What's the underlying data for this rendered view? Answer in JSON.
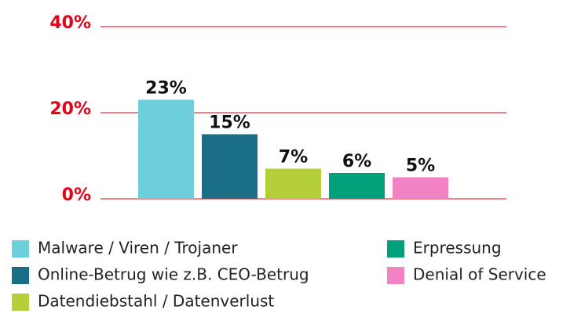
{
  "chart_data": {
    "type": "bar",
    "categories": [
      "Malware / Viren / Trojaner",
      "Online-Betrug wie z.B. CEO-Betrug",
      "Datendiebstahl / Datenverlust",
      "Erpressung",
      "Denial of Service"
    ],
    "values": [
      23,
      15,
      7,
      6,
      5
    ],
    "value_labels": [
      "23%",
      "15%",
      "7%",
      "6%",
      "5%"
    ],
    "colors": [
      "#6ecfdc",
      "#1a6e85",
      "#b5cf3b",
      "#00a07a",
      "#f283c3"
    ],
    "ylim": [
      0,
      40
    ],
    "yticks": [
      {
        "value": 0,
        "label": "0%"
      },
      {
        "value": 20,
        "label": "20%"
      },
      {
        "value": 40,
        "label": "40%"
      }
    ],
    "grid": true,
    "grid_color": "#e2001a",
    "tick_color": "#e2001a"
  }
}
